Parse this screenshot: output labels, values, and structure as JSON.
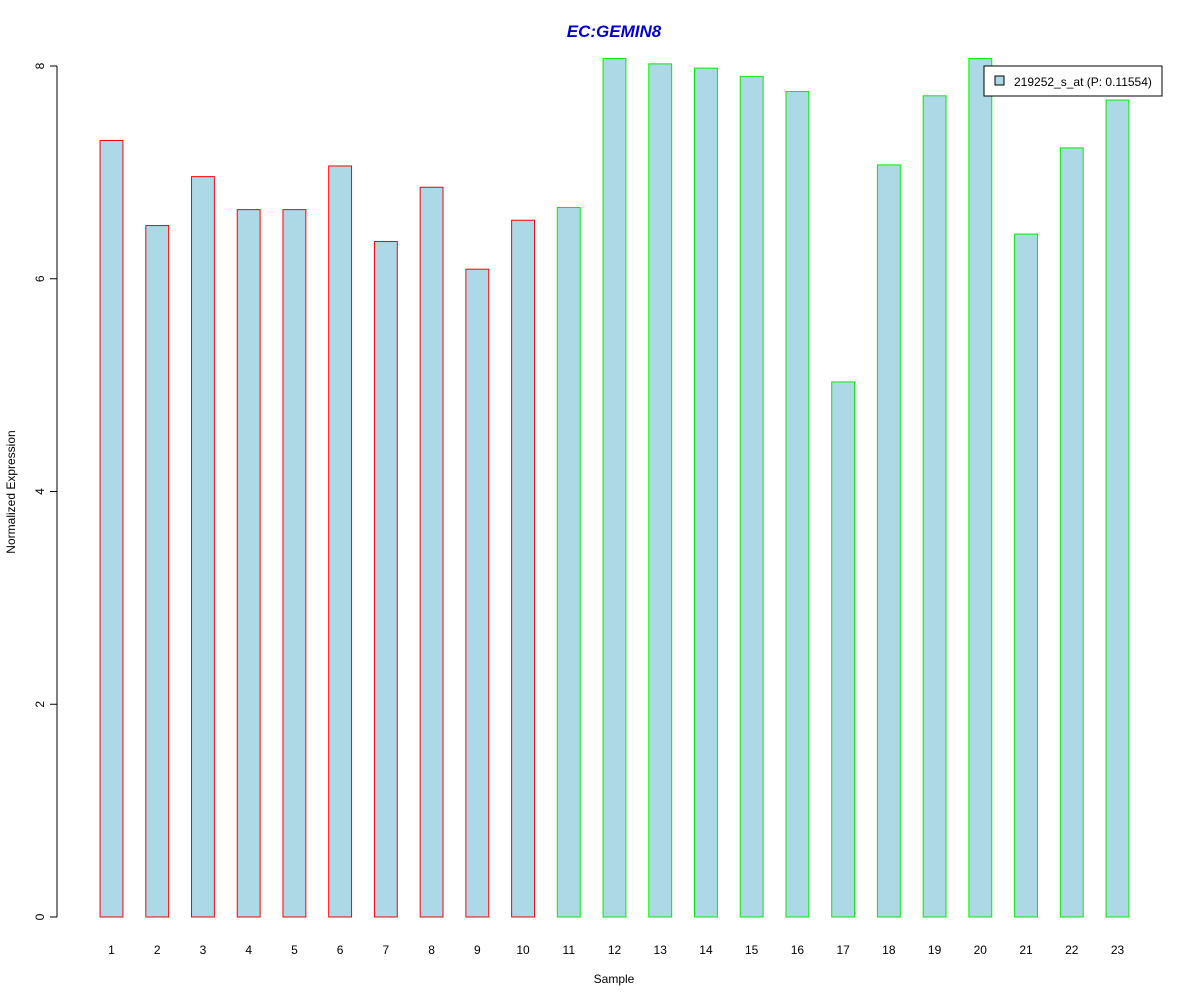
{
  "chart_data": {
    "type": "bar",
    "title": "EC:GEMIN8",
    "xlabel": "Sample",
    "ylabel": "Normalized Expression",
    "categories": [
      "1",
      "2",
      "3",
      "4",
      "5",
      "6",
      "7",
      "8",
      "9",
      "10",
      "11",
      "12",
      "13",
      "14",
      "15",
      "16",
      "17",
      "18",
      "19",
      "20",
      "21",
      "22",
      "23"
    ],
    "series": [
      {
        "name": "219252_s_at (P: 0.11554)",
        "values": [
          7.3,
          6.5,
          6.96,
          6.65,
          6.65,
          7.06,
          6.35,
          6.86,
          6.09,
          6.55,
          6.67,
          8.07,
          8.02,
          7.98,
          7.9,
          7.76,
          5.03,
          7.07,
          7.72,
          8.07,
          6.42,
          7.23,
          7.68
        ]
      }
    ],
    "group_border_colors": [
      "#ff0000",
      "#ff0000",
      "#ff0000",
      "#ff0000",
      "#ff0000",
      "#ff0000",
      "#ff0000",
      "#ff0000",
      "#ff0000",
      "#ff0000",
      "#00ee00",
      "#00ee00",
      "#00ee00",
      "#00ee00",
      "#00ee00",
      "#00ee00",
      "#00ee00",
      "#00ee00",
      "#00ee00",
      "#00ee00",
      "#00ee00",
      "#00ee00",
      "#00ee00"
    ],
    "yticks": [
      0,
      2,
      4,
      6,
      8
    ],
    "ylim": [
      0,
      8
    ],
    "grid": false,
    "legend_position": "top-right",
    "colors": {
      "bar_fill": "#add8e6",
      "title": "#0000cc",
      "axis": "#000000"
    }
  }
}
